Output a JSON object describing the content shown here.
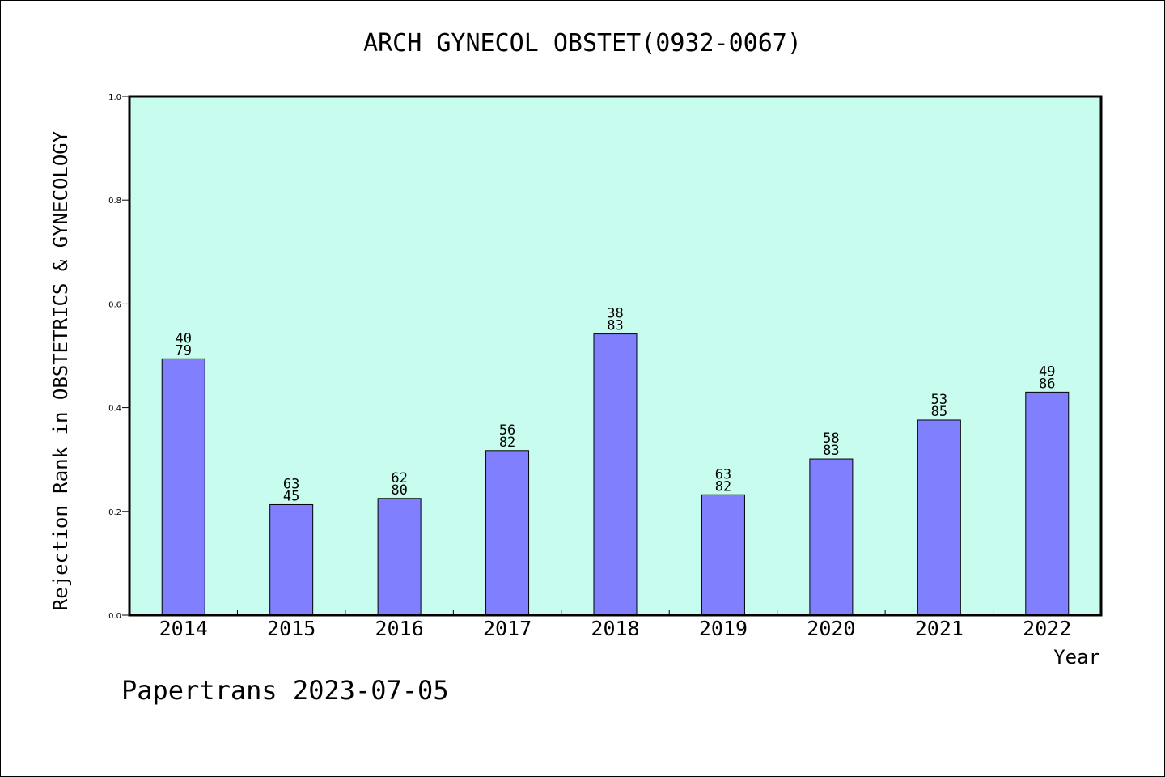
{
  "chart_data": {
    "type": "bar",
    "title": "ARCH GYNECOL OBSTET(0932-0067)",
    "xlabel": "Year",
    "ylabel": "Rejection Rank in OBSTETRICS & GYNECOLOGY",
    "ylim": [
      0,
      1.0
    ],
    "yticks": [
      "0.0",
      "0.2",
      "0.4",
      "0.6",
      "0.8",
      "1.0"
    ],
    "categories": [
      "2014",
      "2015",
      "2016",
      "2017",
      "2018",
      "2019",
      "2020",
      "2021",
      "2022"
    ],
    "values": [
      0.494,
      0.213,
      0.225,
      0.317,
      0.542,
      0.232,
      0.301,
      0.376,
      0.43
    ],
    "labels_top": [
      "40",
      "63",
      "62",
      "56",
      "38",
      "63",
      "58",
      "53",
      "49"
    ],
    "labels_bottom": [
      "79",
      "45",
      "80",
      "82",
      "83",
      "82",
      "83",
      "85",
      "86"
    ],
    "grid": false,
    "legend": "none",
    "colors": {
      "bar": "#8080ff",
      "plot_background": "#c8fcee",
      "axis": "#000000"
    }
  },
  "footer": {
    "text": "Papertrans 2023-07-05"
  }
}
